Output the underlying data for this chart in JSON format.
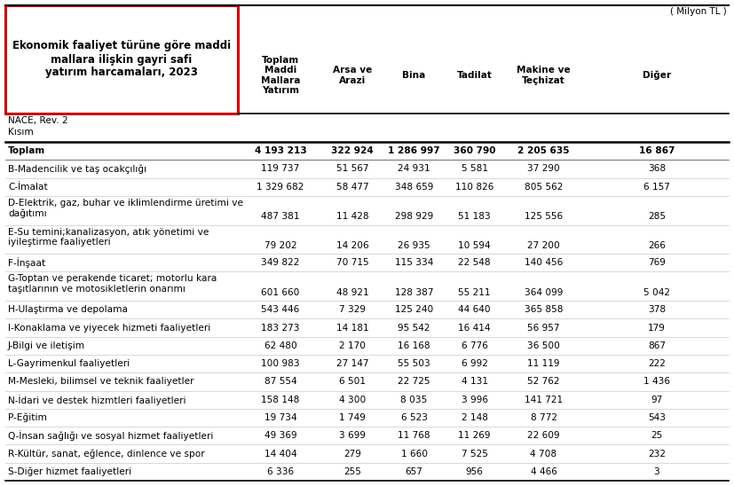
{
  "title_box": "Ekonomik faaliyet türüne göre maddi\nmallara ilişkin gayri safi\nyatırım harcamaları, 2023",
  "unit_label": "( Milyon TL )",
  "col_headers": [
    "Toplam\nMaddi\nMallara\nYatırım",
    "Arsa ve\nArazi",
    "Bina",
    "Tadilat",
    "Makine ve\nTeçhizat",
    "Diğer"
  ],
  "row_label_header1": "NACE, Rev. 2",
  "row_label_header2": "Kısım",
  "rows": [
    {
      "label": "Toplam",
      "values": [
        "4 193 213",
        "322 924",
        "1 286 997",
        "360 790",
        "2 205 635",
        "16 867"
      ],
      "bold": true,
      "multiline": false
    },
    {
      "label": "B-Madencilik ve taş ocakçılığı",
      "values": [
        "119 737",
        "51 567",
        "24 931",
        "5 581",
        "37 290",
        "368"
      ],
      "bold": false,
      "multiline": false
    },
    {
      "label": "C-İmalat",
      "values": [
        "1 329 682",
        "58 477",
        "348 659",
        "110 826",
        "805 562",
        "6 157"
      ],
      "bold": false,
      "multiline": false
    },
    {
      "label": "D-Elektrik, gaz, buhar ve iklimlendirme üretimi ve\ndağıtımı",
      "values": [
        "487 381",
        "11 428",
        "298 929",
        "51 183",
        "125 556",
        "285"
      ],
      "bold": false,
      "multiline": true
    },
    {
      "label": "E-Su temini;kanalizasyon, atık yönetimi ve\niyileştirme faaliyetleri",
      "values": [
        "79 202",
        "14 206",
        "26 935",
        "10 594",
        "27 200",
        "266"
      ],
      "bold": false,
      "multiline": true
    },
    {
      "label": "F-İnşaat",
      "values": [
        "349 822",
        "70 715",
        "115 334",
        "22 548",
        "140 456",
        "769"
      ],
      "bold": false,
      "multiline": false
    },
    {
      "label": "G-Toptan ve perakende ticaret; motorlu kara\ntaşıtlarının ve motosikletlerin onarımı",
      "values": [
        "601 660",
        "48 921",
        "128 387",
        "55 211",
        "364 099",
        "5 042"
      ],
      "bold": false,
      "multiline": true
    },
    {
      "label": "H-Ulaştırma ve depolama",
      "values": [
        "543 446",
        "7 329",
        "125 240",
        "44 640",
        "365 858",
        "378"
      ],
      "bold": false,
      "multiline": false
    },
    {
      "label": "I-Konaklama ve yiyecek hizmeti faaliyetleri",
      "values": [
        "183 273",
        "14 181",
        "95 542",
        "16 414",
        "56 957",
        "179"
      ],
      "bold": false,
      "multiline": false
    },
    {
      "label": "J-Bilgi ve iletişim",
      "values": [
        "62 480",
        "2 170",
        "16 168",
        "6 776",
        "36 500",
        "867"
      ],
      "bold": false,
      "multiline": false
    },
    {
      "label": "L-Gayrimenkul faaliyetleri",
      "values": [
        "100 983",
        "27 147",
        "55 503",
        "6 992",
        "11 119",
        "222"
      ],
      "bold": false,
      "multiline": false
    },
    {
      "label": "M-Mesleki, bilimsel ve teknik faaliyetler",
      "values": [
        "87 554",
        "6 501",
        "22 725",
        "4 131",
        "52 762",
        "1 436"
      ],
      "bold": false,
      "multiline": false
    },
    {
      "label": "N-İdari ve destek hizmtleri faaliyetleri",
      "values": [
        "158 148",
        "4 300",
        "8 035",
        "3 996",
        "141 721",
        "97"
      ],
      "bold": false,
      "multiline": false
    },
    {
      "label": "P-Eğitim",
      "values": [
        "19 734",
        "1 749",
        "6 523",
        "2 148",
        "8 772",
        "543"
      ],
      "bold": false,
      "multiline": false
    },
    {
      "label": "Q-İnsan sağlığı ve sosyal hizmet faaliyetleri",
      "values": [
        "49 369",
        "3 699",
        "11 768",
        "11 269",
        "22 609",
        "25"
      ],
      "bold": false,
      "multiline": false
    },
    {
      "label": "R-Kültür, sanat, eğlence, dinlence ve spor",
      "values": [
        "14 404",
        "279",
        "1 660",
        "7 525",
        "4 708",
        "232"
      ],
      "bold": false,
      "multiline": false
    },
    {
      "label": "S-Diğer hizmet faaliyetleri",
      "values": [
        "6 336",
        "255",
        "657",
        "956",
        "4 466",
        "3"
      ],
      "bold": false,
      "multiline": false
    }
  ],
  "bg_color": "#ffffff",
  "title_box_color": "#cc0000",
  "text_color": "#000000",
  "line_color": "#000000",
  "row_line_color": "#bbbbbb",
  "title_fontsize": 8.5,
  "header_fontsize": 7.6,
  "data_fontsize": 7.6,
  "fig_width": 8.27,
  "fig_height": 5.48,
  "dpi": 100
}
